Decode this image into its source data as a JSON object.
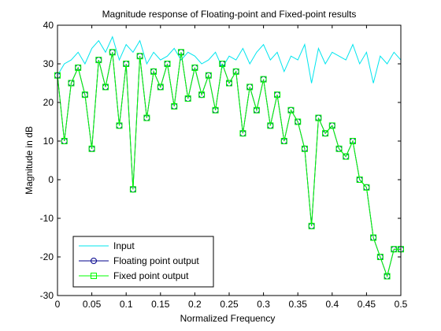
{
  "chart_data": {
    "type": "line",
    "title": "Magnitude response of Floating-point and Fixed-point results",
    "xlabel": "Normalized Frequency",
    "ylabel": "Magnitude in dB",
    "xlim": [
      0,
      0.5
    ],
    "ylim": [
      -30,
      40
    ],
    "xticks": [
      0,
      0.05,
      0.1,
      0.15,
      0.2,
      0.25,
      0.3,
      0.35,
      0.4,
      0.45,
      0.5
    ],
    "xtick_labels": [
      "0",
      "0.05",
      "0.1",
      "0.15",
      "0.2",
      "0.25",
      "0.3",
      "0.35",
      "0.4",
      "0.45",
      "0.5"
    ],
    "yticks": [
      -30,
      -20,
      -10,
      0,
      10,
      20,
      30,
      40
    ],
    "ytick_labels": [
      "-30",
      "-20",
      "-10",
      "0",
      "10",
      "20",
      "30",
      "40"
    ],
    "grid": false,
    "legend_position": "bottom-left",
    "series": [
      {
        "name": "Input",
        "color": "#00e5ee",
        "marker": "none",
        "x": [
          0.0,
          0.01,
          0.02,
          0.03,
          0.04,
          0.05,
          0.06,
          0.07,
          0.08,
          0.09,
          0.1,
          0.11,
          0.12,
          0.13,
          0.14,
          0.15,
          0.16,
          0.17,
          0.18,
          0.19,
          0.2,
          0.21,
          0.22,
          0.23,
          0.24,
          0.25,
          0.26,
          0.27,
          0.28,
          0.29,
          0.3,
          0.31,
          0.32,
          0.33,
          0.34,
          0.35,
          0.36,
          0.37,
          0.38,
          0.39,
          0.4,
          0.41,
          0.42,
          0.43,
          0.44,
          0.45,
          0.46,
          0.47,
          0.48,
          0.49,
          0.5
        ],
        "y": [
          27,
          30,
          31,
          33,
          30,
          34,
          36,
          33,
          37,
          31,
          35,
          33,
          36,
          30,
          33,
          31,
          32,
          34,
          31,
          33,
          32,
          30,
          31,
          33,
          29,
          32,
          31,
          34,
          30,
          33,
          35,
          31,
          33,
          28,
          32,
          31,
          35,
          25,
          34,
          30,
          33,
          32,
          31,
          35,
          30,
          33,
          25,
          32,
          30,
          33,
          31
        ]
      },
      {
        "name": "Floating point output",
        "color": "#00008b",
        "marker": "circle",
        "x": [
          0.0,
          0.01,
          0.02,
          0.03,
          0.04,
          0.05,
          0.06,
          0.07,
          0.08,
          0.09,
          0.1,
          0.11,
          0.12,
          0.13,
          0.14,
          0.15,
          0.16,
          0.17,
          0.18,
          0.19,
          0.2,
          0.21,
          0.22,
          0.23,
          0.24,
          0.25,
          0.26,
          0.27,
          0.28,
          0.29,
          0.3,
          0.31,
          0.32,
          0.33,
          0.34,
          0.35,
          0.36,
          0.37,
          0.38,
          0.39,
          0.4,
          0.41,
          0.42,
          0.43,
          0.44,
          0.45,
          0.46,
          0.47,
          0.48,
          0.49,
          0.5
        ],
        "y": [
          27,
          10,
          25,
          29,
          22,
          8,
          31,
          24,
          33,
          14,
          30,
          -2.5,
          32,
          16,
          28,
          24,
          30,
          19,
          33,
          21,
          29,
          22,
          27,
          18,
          30,
          25,
          28,
          12,
          24,
          18,
          26,
          14,
          22,
          10,
          18,
          15,
          8,
          -12,
          16,
          12,
          14,
          8,
          6,
          10,
          0,
          -2,
          -15,
          -20,
          -25,
          -18,
          -18
        ]
      },
      {
        "name": "Fixed point output",
        "color": "#00ff00",
        "marker": "square",
        "x": [
          0.0,
          0.01,
          0.02,
          0.03,
          0.04,
          0.05,
          0.06,
          0.07,
          0.08,
          0.09,
          0.1,
          0.11,
          0.12,
          0.13,
          0.14,
          0.15,
          0.16,
          0.17,
          0.18,
          0.19,
          0.2,
          0.21,
          0.22,
          0.23,
          0.24,
          0.25,
          0.26,
          0.27,
          0.28,
          0.29,
          0.3,
          0.31,
          0.32,
          0.33,
          0.34,
          0.35,
          0.36,
          0.37,
          0.38,
          0.39,
          0.4,
          0.41,
          0.42,
          0.43,
          0.44,
          0.45,
          0.46,
          0.47,
          0.48,
          0.49,
          0.5
        ],
        "y": [
          27,
          10,
          25,
          29,
          22,
          8,
          31,
          24,
          33,
          14,
          30,
          -2.5,
          32,
          16,
          28,
          24,
          30,
          19,
          33,
          21,
          29,
          22,
          27,
          18,
          30,
          25,
          28,
          12,
          24,
          18,
          26,
          14,
          22,
          10,
          18,
          15,
          8,
          -12,
          16,
          12,
          14,
          8,
          6,
          10,
          0,
          -2,
          -15,
          -20,
          -25,
          -18,
          -18
        ]
      }
    ]
  }
}
